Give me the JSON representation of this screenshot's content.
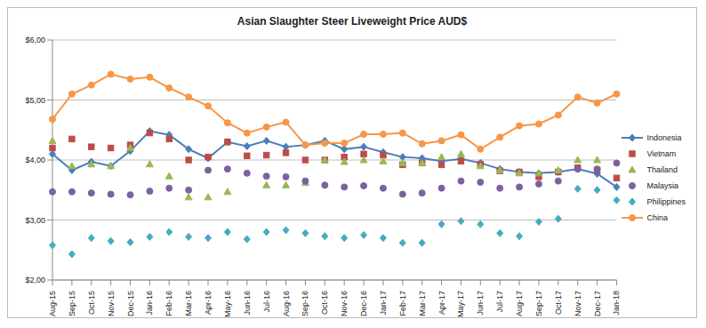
{
  "chart_data": {
    "type": "line",
    "title": "Asian Slaughter Steer Liveweight Price AUD$",
    "categories": [
      "Aug-15",
      "Sep-15",
      "Oct-15",
      "Nov-15",
      "Dec-15",
      "Jan-16",
      "Feb-16",
      "Mar-16",
      "Apr-16",
      "May-16",
      "Jun-16",
      "Jul-16",
      "Aug-16",
      "Sep-16",
      "Oct-16",
      "Nov-16",
      "Dec-16",
      "Jan-17",
      "Feb-17",
      "Mar-17",
      "Apr-17",
      "May-17",
      "Jun-17",
      "Jul-17",
      "Aug-17",
      "Sep-17",
      "Oct-17",
      "Nov-17",
      "Dec-17",
      "Jan-18"
    ],
    "series": [
      {
        "name": "Indonesia",
        "color": "#4a7ebb",
        "marker": "diamond",
        "line_style": "solid",
        "values": [
          4.1,
          3.83,
          3.97,
          3.9,
          4.15,
          4.48,
          4.42,
          4.18,
          4.03,
          4.3,
          4.23,
          4.32,
          4.22,
          4.25,
          4.32,
          4.18,
          4.22,
          4.13,
          4.05,
          4.03,
          3.98,
          4.02,
          3.95,
          3.85,
          3.8,
          3.78,
          3.8,
          3.85,
          3.77,
          3.55
        ]
      },
      {
        "name": "Vietnam",
        "color": "#be4b48",
        "marker": "square",
        "line_style": "none",
        "values": [
          4.2,
          4.35,
          4.22,
          4.2,
          4.25,
          4.45,
          4.35,
          4.0,
          4.05,
          4.3,
          4.07,
          4.08,
          4.12,
          4.0,
          4.0,
          4.05,
          4.1,
          4.08,
          3.92,
          3.95,
          3.92,
          3.98,
          3.93,
          3.82,
          3.8,
          3.72,
          3.8,
          3.87,
          3.83,
          3.7
        ]
      },
      {
        "name": "Thailand",
        "color": "#98b954",
        "marker": "triangle",
        "line_style": "none",
        "values": [
          4.32,
          3.9,
          3.93,
          3.9,
          4.2,
          3.93,
          3.73,
          3.38,
          3.38,
          3.47,
          null,
          3.58,
          3.58,
          3.62,
          4.0,
          3.97,
          4.0,
          3.98,
          3.95,
          3.95,
          4.05,
          4.1,
          3.9,
          3.83,
          3.78,
          3.78,
          3.83,
          4.0,
          4.0,
          null
        ]
      },
      {
        "name": "Malaysia",
        "color": "#7d60a0",
        "marker": "circle",
        "line_style": "none",
        "values": [
          3.47,
          3.47,
          3.45,
          3.43,
          3.42,
          3.48,
          3.53,
          3.5,
          3.83,
          3.85,
          3.78,
          3.73,
          3.72,
          3.65,
          3.58,
          3.55,
          3.57,
          3.53,
          3.43,
          3.45,
          3.53,
          3.65,
          3.63,
          3.53,
          3.55,
          3.6,
          3.65,
          3.85,
          3.85,
          3.95
        ]
      },
      {
        "name": "Philippines",
        "color": "#46aac5",
        "marker": "diamond",
        "line_style": "none",
        "values": [
          2.58,
          2.43,
          2.7,
          2.65,
          2.63,
          2.72,
          2.8,
          2.72,
          2.7,
          2.8,
          2.68,
          2.8,
          2.83,
          2.78,
          2.73,
          2.7,
          2.75,
          2.7,
          2.62,
          2.62,
          2.93,
          2.98,
          2.93,
          2.78,
          2.73,
          2.97,
          3.02,
          3.52,
          3.5,
          3.33
        ]
      },
      {
        "name": "China",
        "color": "#f79646",
        "marker": "circle",
        "line_style": "solid",
        "values": [
          4.68,
          5.1,
          5.25,
          5.43,
          5.35,
          5.38,
          5.2,
          5.05,
          4.9,
          4.62,
          4.45,
          4.55,
          4.63,
          4.25,
          4.28,
          4.28,
          4.43,
          4.43,
          4.45,
          4.27,
          4.32,
          4.42,
          4.18,
          4.38,
          4.57,
          4.6,
          4.75,
          5.05,
          4.95,
          5.1
        ]
      }
    ],
    "ylim": [
      2,
      6
    ],
    "yticks": [
      {
        "value": 2,
        "label": "$2,00"
      },
      {
        "value": 3,
        "label": "$3,00"
      },
      {
        "value": 4,
        "label": "$4,00"
      },
      {
        "value": 5,
        "label": "$5,00"
      },
      {
        "value": 6,
        "label": "$6,00"
      }
    ],
    "grid": true,
    "legend": "right"
  }
}
